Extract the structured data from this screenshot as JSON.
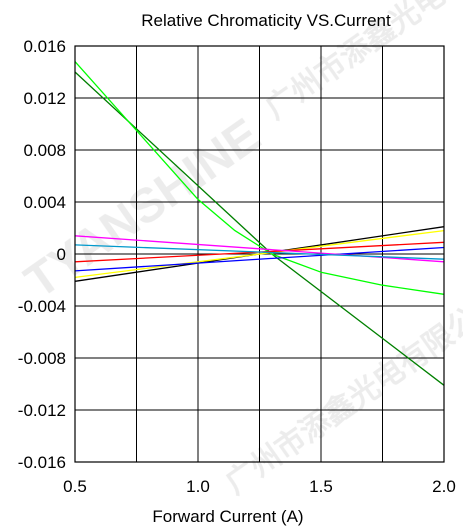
{
  "chart_data": {
    "type": "line",
    "title": "Relative Chromaticity VS.Current",
    "xlabel": "Forward Current (A)",
    "ylabel": "",
    "xlim": [
      0.5,
      2.0
    ],
    "ylim": [
      -0.016,
      0.016
    ],
    "x_ticks": [
      0.5,
      1.0,
      1.5,
      2.0
    ],
    "x_tick_labels": [
      "0.5",
      "1.0",
      "1.5",
      "2.0"
    ],
    "y_ticks": [
      0.016,
      0.012,
      0.008,
      0.004,
      0,
      -0.004,
      -0.008,
      -0.012,
      -0.016
    ],
    "y_tick_labels": [
      "0.016",
      "0.012",
      "0.008",
      "0.004",
      "0",
      "-0.004",
      "-0.008",
      "-0.012",
      "-0.016"
    ],
    "grid": true,
    "series": [
      {
        "color": "#008000",
        "x": [
          0.5,
          1.3,
          2.0
        ],
        "y": [
          0.014,
          0.0,
          -0.0101
        ]
      },
      {
        "color": "#00ff00",
        "x": [
          0.5,
          0.75,
          1.0,
          1.15,
          1.3,
          1.5,
          1.75,
          2.0
        ],
        "y": [
          0.0148,
          0.0095,
          0.0042,
          0.0018,
          0.0,
          -0.0014,
          -0.0024,
          -0.0031
        ]
      },
      {
        "color": "#000000",
        "x": [
          0.5,
          2.0
        ],
        "y": [
          -0.0021,
          0.0021
        ]
      },
      {
        "color": "#ffff00",
        "x": [
          0.5,
          2.0
        ],
        "y": [
          -0.0018,
          0.0018
        ]
      },
      {
        "color": "#ff0000",
        "x": [
          0.5,
          2.0
        ],
        "y": [
          -0.0006,
          0.0009
        ]
      },
      {
        "color": "#0000ff",
        "x": [
          0.5,
          2.0
        ],
        "y": [
          -0.0013,
          0.0005
        ]
      },
      {
        "color": "#ff00ff",
        "x": [
          0.5,
          2.0
        ],
        "y": [
          0.0014,
          -0.0006
        ]
      },
      {
        "color": "#0099cc",
        "x": [
          0.5,
          2.0
        ],
        "y": [
          0.0007,
          -0.0004
        ]
      }
    ]
  }
}
